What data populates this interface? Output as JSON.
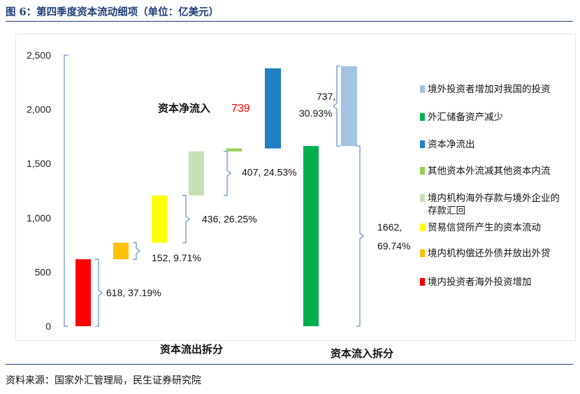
{
  "figure": {
    "title": "图 6：第四季度资本流动细项（单位：亿美元）",
    "source": "资料来源：国家外汇管理局，民生证券研究院"
  },
  "colors": {
    "title": "#1f3d7a",
    "bracket": "#6b96c7",
    "highlight": "#ff0000"
  },
  "chart_data": {
    "type": "bar",
    "subtype": "waterfall",
    "ylim": [
      0,
      2500
    ],
    "yticks": [
      0,
      500,
      1000,
      1500,
      2000,
      2500
    ],
    "ytick_labels": [
      "0",
      "500",
      "1,000",
      "1,500",
      "2,000",
      "2,500"
    ],
    "grid": false,
    "legend_position": "right",
    "groups": [
      "资本流出拆分",
      "资本流入拆分"
    ],
    "net_annotation": {
      "label": "资本净流入",
      "value": "739"
    },
    "outflow_bars": [
      {
        "name": "境内投资者海外投资增加",
        "bottom": 0,
        "top": 618,
        "color": "#ff0000"
      },
      {
        "name": "境内机构偿还外债并放出外贷",
        "bottom": 618,
        "top": 770,
        "color": "#ffc000"
      },
      {
        "name": "贸易信贷所产生的资本流动",
        "bottom": 770,
        "top": 1206,
        "color": "#ffff00"
      },
      {
        "name": "境内机构海外存款与境外企业的存款汇回",
        "bottom": 1206,
        "top": 1613,
        "color": "#c6e0b4"
      },
      {
        "name": "其他资本外流减其他资本内流",
        "bottom": 1613,
        "top": 1640,
        "color": "#92d050"
      },
      {
        "name": "资本净流出",
        "bottom": 1640,
        "top": 2379,
        "color": "#1f80c8"
      }
    ],
    "inflow_bars": [
      {
        "name": "外汇储备资产减少",
        "bottom": 0,
        "top": 1662,
        "color": "#00b050"
      },
      {
        "name": "境外投资者增加对我国的投资",
        "bottom": 1662,
        "top": 2399,
        "color": "#a4c2e4"
      }
    ],
    "annotations": [
      {
        "text": "618, 37.19%",
        "from": 0,
        "to": 618
      },
      {
        "text": "152, 9.71%",
        "from": 618,
        "to": 770
      },
      {
        "text": "436, 26.25%",
        "from": 770,
        "to": 1206
      },
      {
        "text": "407, 24.53%",
        "from": 1206,
        "to": 1613
      },
      {
        "text": "1662,\n69.74%",
        "from": 0,
        "to": 1662
      },
      {
        "text": "737,\n30.93%",
        "from": 1662,
        "to": 2399
      }
    ],
    "legend": [
      {
        "label": "境外投资者增加对我国的投资",
        "color": "#a4c2e4"
      },
      {
        "label": "外汇储备资产减少",
        "color": "#00b050"
      },
      {
        "label": "资本净流出",
        "color": "#1f80c8"
      },
      {
        "label": "其他资本外流减其他资本内流",
        "color": "#92d050"
      },
      {
        "label": "境内机构海外存款与境外企业的存款汇回",
        "color": "#c6e0b4"
      },
      {
        "label": "贸易信贷所产生的资本流动",
        "color": "#ffff00"
      },
      {
        "label": "境内机构偿还外债并放出外贷",
        "color": "#ffc000"
      },
      {
        "label": "境内投资者海外投资增加",
        "color": "#ff0000"
      }
    ]
  }
}
